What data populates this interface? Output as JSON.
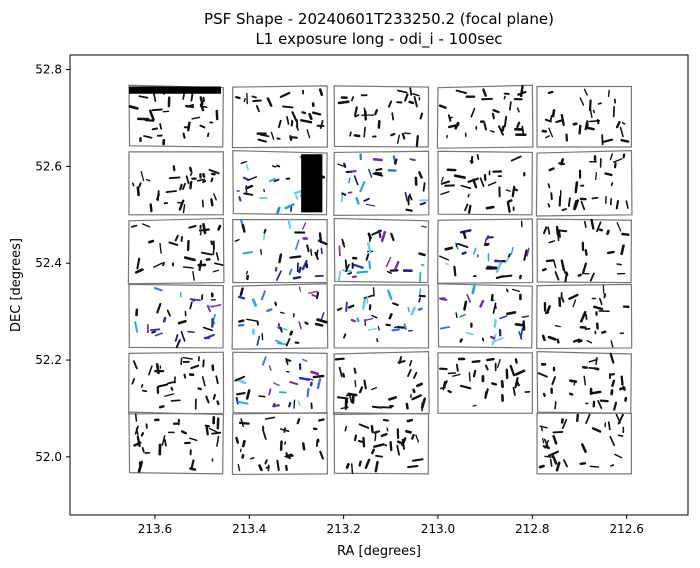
{
  "chart_data": {
    "type": "scatter",
    "title": "PSF Shape - 20240601T233250.2 (focal plane)",
    "subtitle": "L1 exposure long - odi_i - 100sec",
    "xlabel": "RA [degrees]",
    "ylabel": "DEC [degrees]",
    "xlim": [
      213.78,
      212.47
    ],
    "ylim": [
      51.88,
      52.83
    ],
    "x_ticks": [
      213.6,
      213.4,
      213.2,
      213.0,
      212.8,
      212.6
    ],
    "x_tick_labels": [
      "213.6",
      "213.4",
      "213.2",
      "213.0",
      "212.8",
      "212.6"
    ],
    "y_ticks": [
      52.0,
      52.2,
      52.4,
      52.6,
      52.8
    ],
    "y_tick_labels": [
      "52.0",
      "52.2",
      "52.4",
      "52.6",
      "52.8"
    ],
    "grid": false,
    "chip_columns_ra": [
      [
        213.655,
        213.455
      ],
      [
        213.435,
        213.235
      ],
      [
        213.22,
        213.02
      ],
      [
        213.0,
        212.8
      ],
      [
        212.79,
        212.59
      ]
    ],
    "chip_rows_dec": [
      [
        52.765,
        52.64
      ],
      [
        52.63,
        52.5
      ],
      [
        52.49,
        52.36
      ],
      [
        52.355,
        52.225
      ],
      [
        52.215,
        52.09
      ],
      [
        52.09,
        51.965
      ]
    ],
    "missing_chips": [
      [
        5,
        3
      ]
    ],
    "whisker_colors": [
      "#111111",
      "#2233cc",
      "#3377ee",
      "#22aadd",
      "#66ccee",
      "#7a2aa8",
      "#1a1a9a"
    ],
    "colored_chips": [
      [
        1,
        1
      ],
      [
        1,
        2
      ],
      [
        2,
        1
      ],
      [
        2,
        2
      ],
      [
        2,
        3
      ],
      [
        3,
        0
      ],
      [
        3,
        1
      ],
      [
        3,
        2
      ],
      [
        3,
        3
      ],
      [
        4,
        1
      ]
    ],
    "saturated_features": [
      {
        "ra": [
          213.29,
          213.245
        ],
        "dec": [
          52.625,
          52.505
        ]
      },
      {
        "ra": [
          213.655,
          213.46
        ],
        "dec": [
          52.765,
          52.75
        ]
      }
    ]
  }
}
